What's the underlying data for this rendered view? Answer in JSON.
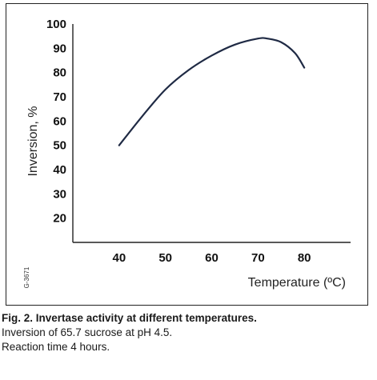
{
  "figure_id": "G-3671",
  "caption": {
    "title": "Fig. 2. Invertase activity at different temperatures.",
    "lines": [
      "Inversion of 65.7 sucrose at pH 4.5.",
      "Reaction time 4 hours."
    ]
  },
  "chart_data": {
    "type": "line",
    "title": "",
    "xlabel": "Temperature (ºC)",
    "ylabel": "Inversion, %",
    "xlim": [
      30,
      90
    ],
    "ylim": [
      10,
      100
    ],
    "x_ticks": [
      40,
      50,
      60,
      70,
      80
    ],
    "y_ticks": [
      20,
      30,
      40,
      50,
      60,
      70,
      80,
      90,
      100
    ],
    "grid": false,
    "series": [
      {
        "color": "#1f2a44",
        "x": [
          40,
          45,
          50,
          55,
          60,
          65,
          70,
          72,
          75,
          78,
          80
        ],
        "y": [
          50,
          62,
          73,
          81,
          87,
          91.5,
          94,
          94,
          92.5,
          88,
          82
        ]
      }
    ]
  }
}
